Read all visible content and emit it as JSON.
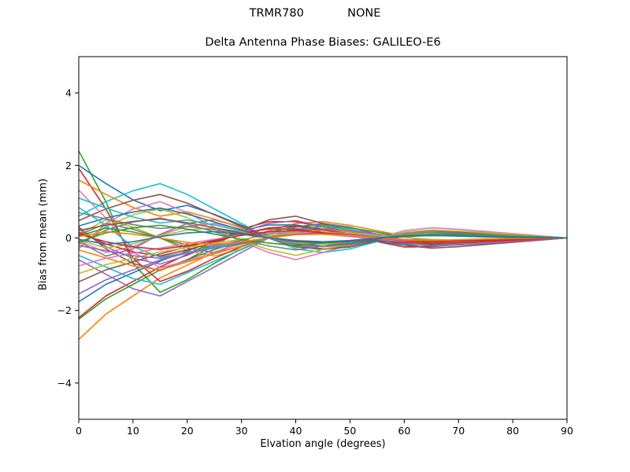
{
  "chart_data": {
    "type": "line",
    "suptitle": "TRMR780            NONE",
    "title": "Delta Antenna Phase Biases: GALILEO-E6",
    "xlabel": "Elvation angle (degrees)",
    "ylabel": "Bias from mean (mm)",
    "xlim": [
      0,
      90
    ],
    "ylim": [
      -5,
      5
    ],
    "x_tick_values": [
      0,
      10,
      20,
      30,
      40,
      50,
      60,
      70,
      80,
      90
    ],
    "x_tick_labels": [
      "0",
      "10",
      "20",
      "30",
      "40",
      "50",
      "60",
      "70",
      "80",
      "90"
    ],
    "y_tick_values": [
      -4,
      -2,
      0,
      2,
      4
    ],
    "y_tick_labels": [
      "−4",
      "−2",
      "0",
      "2",
      "4"
    ],
    "grid": false,
    "legend": "none",
    "background": "#ffffff",
    "axes_color": "#000000",
    "line_width": 1.6,
    "x": [
      0,
      5,
      10,
      15,
      20,
      25,
      30,
      35,
      40,
      45,
      50,
      55,
      60,
      65,
      70,
      75,
      80,
      85,
      90
    ],
    "shapes": {
      "S1": [
        2.4,
        1.0,
        -0.7,
        -1.5,
        -1.15,
        -0.7,
        -0.3,
        0.0,
        0.3,
        0.4,
        0.3,
        0.1,
        -0.12,
        -0.2,
        -0.18,
        -0.12,
        -0.08,
        -0.04,
        0.0
      ],
      "S2": [
        -2.8,
        -2.1,
        -1.6,
        -1.1,
        -0.75,
        -0.4,
        -0.1,
        0.2,
        0.4,
        0.45,
        0.35,
        0.2,
        0.05,
        -0.12,
        -0.18,
        -0.15,
        -0.1,
        -0.05,
        0.0
      ],
      "S3": [
        2.0,
        1.5,
        1.05,
        0.75,
        0.9,
        0.65,
        0.35,
        0.05,
        -0.2,
        -0.3,
        -0.25,
        -0.08,
        0.12,
        0.2,
        0.18,
        0.14,
        0.09,
        0.05,
        0.0
      ],
      "S4": [
        -2.2,
        -1.6,
        -1.2,
        -0.8,
        -0.45,
        -0.1,
        0.25,
        0.45,
        0.45,
        0.3,
        0.1,
        -0.1,
        -0.25,
        -0.24,
        -0.18,
        -0.13,
        -0.09,
        -0.04,
        0.0
      ],
      "S5": [
        0.6,
        1.0,
        1.3,
        1.5,
        1.2,
        0.8,
        0.4,
        0.0,
        -0.3,
        -0.4,
        -0.3,
        -0.1,
        0.12,
        0.2,
        0.19,
        0.15,
        0.1,
        0.05,
        0.0
      ],
      "S6": [
        -0.6,
        -1.0,
        -1.4,
        -1.6,
        -1.2,
        -0.8,
        -0.4,
        0.0,
        0.3,
        0.4,
        0.3,
        0.1,
        -0.12,
        -0.2,
        -0.19,
        -0.15,
        -0.1,
        -0.05,
        0.0
      ],
      "S7": [
        0.3,
        -0.3,
        -0.7,
        -0.9,
        -0.6,
        -0.2,
        0.2,
        0.5,
        0.6,
        0.4,
        0.2,
        0.0,
        -0.2,
        -0.28,
        -0.24,
        -0.18,
        -0.12,
        -0.06,
        0.0
      ],
      "S8": [
        -0.3,
        0.4,
        0.8,
        1.0,
        0.7,
        0.3,
        -0.1,
        -0.4,
        -0.6,
        -0.4,
        -0.2,
        0.0,
        0.2,
        0.28,
        0.24,
        0.18,
        0.12,
        0.06,
        0.0
      ],
      "S9": [
        0.1,
        0.5,
        0.3,
        0.0,
        -0.35,
        -0.5,
        -0.3,
        0.0,
        0.25,
        0.3,
        0.2,
        0.02,
        -0.15,
        -0.2,
        -0.14,
        -0.08,
        -0.04,
        -0.02,
        0.0
      ],
      "S10": [
        -0.1,
        -0.5,
        -0.3,
        0.1,
        0.4,
        0.5,
        0.3,
        0.0,
        -0.25,
        -0.3,
        -0.2,
        -0.02,
        0.15,
        0.2,
        0.14,
        0.08,
        0.04,
        0.02,
        0.0
      ]
    },
    "series": [
      {
        "shape": "S1",
        "scale": 1.0,
        "color": "#2ca02c"
      },
      {
        "shape": "S2",
        "scale": 1.0,
        "color": "#ff7f0e"
      },
      {
        "shape": "S3",
        "scale": 1.0,
        "color": "#1f77b4"
      },
      {
        "shape": "S4",
        "scale": 1.0,
        "color": "#d62728"
      },
      {
        "shape": "S5",
        "scale": 1.0,
        "color": "#17becf"
      },
      {
        "shape": "S6",
        "scale": 1.0,
        "color": "#9467bd"
      },
      {
        "shape": "S7",
        "scale": 1.0,
        "color": "#8c564b"
      },
      {
        "shape": "S8",
        "scale": 1.0,
        "color": "#e377c2"
      },
      {
        "shape": "S9",
        "scale": 1.0,
        "color": "#bcbd22"
      },
      {
        "shape": "S10",
        "scale": 1.0,
        "color": "#7f7f7f"
      },
      {
        "shape": "S1",
        "scale": 0.8,
        "color": "#d62728"
      },
      {
        "shape": "S2",
        "scale": 0.8,
        "color": "#2ca02c"
      },
      {
        "shape": "S3",
        "scale": 0.8,
        "color": "#ff7f0e"
      },
      {
        "shape": "S4",
        "scale": 0.8,
        "color": "#1f77b4"
      },
      {
        "shape": "S5",
        "scale": 0.8,
        "color": "#8c564b"
      },
      {
        "shape": "S6",
        "scale": 0.8,
        "color": "#17becf"
      },
      {
        "shape": "S7",
        "scale": 0.8,
        "color": "#9467bd"
      },
      {
        "shape": "S8",
        "scale": 0.8,
        "color": "#bcbd22"
      },
      {
        "shape": "S9",
        "scale": 0.8,
        "color": "#7f7f7f"
      },
      {
        "shape": "S10",
        "scale": 0.8,
        "color": "#e377c2"
      },
      {
        "shape": "S1",
        "scale": 0.55,
        "color": "#e377c2"
      },
      {
        "shape": "S2",
        "scale": 0.55,
        "color": "#9467bd"
      },
      {
        "shape": "S3",
        "scale": 0.55,
        "color": "#17becf"
      },
      {
        "shape": "S4",
        "scale": 0.55,
        "color": "#8c564b"
      },
      {
        "shape": "S5",
        "scale": 0.55,
        "color": "#1f77b4"
      },
      {
        "shape": "S6",
        "scale": 0.55,
        "color": "#ff7f0e"
      },
      {
        "shape": "S7",
        "scale": 0.55,
        "color": "#d62728"
      },
      {
        "shape": "S8",
        "scale": 0.55,
        "color": "#7f7f7f"
      },
      {
        "shape": "S9",
        "scale": 0.55,
        "color": "#2ca02c"
      },
      {
        "shape": "S10",
        "scale": 0.55,
        "color": "#bcbd22"
      },
      {
        "shape": "S1",
        "scale": 0.35,
        "color": "#17becf"
      },
      {
        "shape": "S2",
        "scale": 0.35,
        "color": "#bcbd22"
      },
      {
        "shape": "S3",
        "scale": 0.35,
        "color": "#7f7f7f"
      },
      {
        "shape": "S4",
        "scale": 0.35,
        "color": "#e377c2"
      },
      {
        "shape": "S5",
        "scale": 0.35,
        "color": "#8c564b"
      },
      {
        "shape": "S6",
        "scale": 0.35,
        "color": "#9467bd"
      },
      {
        "shape": "S7",
        "scale": 0.35,
        "color": "#d62728"
      },
      {
        "shape": "S8",
        "scale": 0.35,
        "color": "#2ca02c"
      },
      {
        "shape": "S9",
        "scale": 0.35,
        "color": "#ff7f0e"
      },
      {
        "shape": "S10",
        "scale": 0.35,
        "color": "#1f77b4"
      }
    ]
  }
}
